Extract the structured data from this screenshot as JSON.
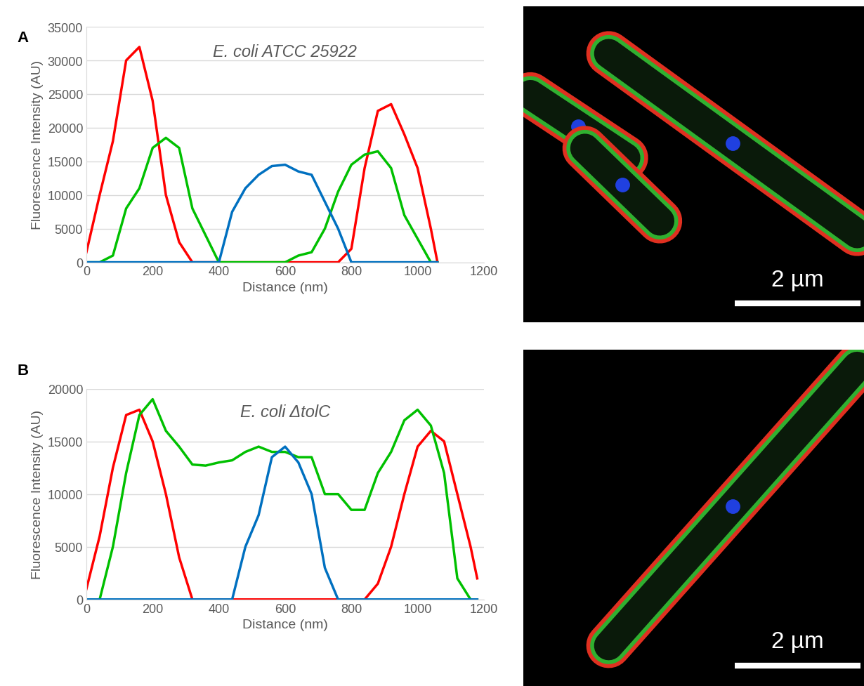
{
  "chart_data": [
    {
      "type": "line",
      "title": "E. coli ATCC 25922",
      "x_label": "Distance (nm)",
      "y_label": "Fluorescence Intensity (AU)",
      "x": [
        0,
        40,
        80,
        120,
        160,
        200,
        240,
        280,
        320,
        360,
        400,
        440,
        480,
        520,
        560,
        600,
        640,
        680,
        720,
        760,
        800,
        840,
        880,
        920,
        960,
        1000,
        1040,
        1060
      ],
      "series": [
        {
          "color": "#ff0000",
          "values": [
            1500,
            10000,
            18000,
            30000,
            32000,
            24000,
            10000,
            3000,
            0,
            0,
            0,
            0,
            0,
            0,
            0,
            0,
            0,
            0,
            0,
            0,
            2000,
            14000,
            22500,
            23500,
            19000,
            14000,
            5000,
            0
          ]
        },
        {
          "color": "#00c000",
          "values": [
            0,
            0,
            1000,
            8000,
            11000,
            17000,
            18500,
            17000,
            8000,
            4000,
            0,
            0,
            0,
            0,
            0,
            0,
            1000,
            1500,
            5000,
            10500,
            14500,
            16000,
            16500,
            14000,
            7000,
            3500,
            0,
            0
          ]
        },
        {
          "color": "#0070c0",
          "values": [
            0,
            0,
            0,
            0,
            0,
            0,
            0,
            0,
            0,
            0,
            0,
            7500,
            11000,
            13000,
            14300,
            14500,
            13500,
            13000,
            9000,
            5000,
            0,
            0,
            0,
            0,
            0,
            0,
            0,
            0
          ]
        }
      ],
      "xlim": [
        0,
        1200
      ],
      "xticks": [
        0,
        200,
        400,
        600,
        800,
        1000,
        1200
      ],
      "ylim": [
        0,
        35000
      ],
      "yticks": [
        0,
        5000,
        10000,
        15000,
        20000,
        25000,
        30000,
        35000
      ],
      "grid": true
    },
    {
      "type": "line",
      "title": "E. coli ΔtolC",
      "x_label": "Distance (nm)",
      "y_label": "Fluorescence Intensity (AU)",
      "x": [
        0,
        40,
        80,
        120,
        160,
        200,
        240,
        280,
        320,
        360,
        400,
        440,
        480,
        520,
        560,
        600,
        640,
        680,
        720,
        760,
        800,
        840,
        880,
        920,
        960,
        1000,
        1040,
        1080,
        1120,
        1160,
        1180
      ],
      "series": [
        {
          "color": "#ff0000",
          "values": [
            1000,
            6000,
            12500,
            17500,
            18000,
            15000,
            10000,
            4000,
            0,
            0,
            0,
            0,
            0,
            0,
            0,
            0,
            0,
            0,
            0,
            0,
            0,
            0,
            1500,
            5000,
            10000,
            14500,
            16000,
            15000,
            10000,
            5000,
            2000
          ]
        },
        {
          "color": "#00c000",
          "values": [
            0,
            0,
            5000,
            12000,
            17500,
            19000,
            16000,
            14500,
            12800,
            12700,
            13000,
            13200,
            14000,
            14500,
            14000,
            14000,
            13500,
            13500,
            10000,
            10000,
            8500,
            8500,
            12000,
            14000,
            17000,
            18000,
            16500,
            12000,
            2000,
            0,
            0
          ]
        },
        {
          "color": "#0070c0",
          "values": [
            0,
            0,
            0,
            0,
            0,
            0,
            0,
            0,
            0,
            0,
            0,
            0,
            5000,
            8000,
            13500,
            14500,
            13000,
            10000,
            3000,
            0,
            0,
            0,
            0,
            0,
            0,
            0,
            0,
            0,
            0,
            0,
            0
          ]
        }
      ],
      "xlim": [
        0,
        1200
      ],
      "xticks": [
        0,
        200,
        400,
        600,
        800,
        1000,
        1200
      ],
      "ylim": [
        0,
        20000
      ],
      "yticks": [
        0,
        5000,
        10000,
        15000,
        20000
      ],
      "grid": true
    }
  ],
  "panel_labels": [
    "A",
    "B"
  ],
  "micrographs": [
    {
      "scale_bar": "2 µm"
    },
    {
      "scale_bar": "2 µm"
    }
  ]
}
